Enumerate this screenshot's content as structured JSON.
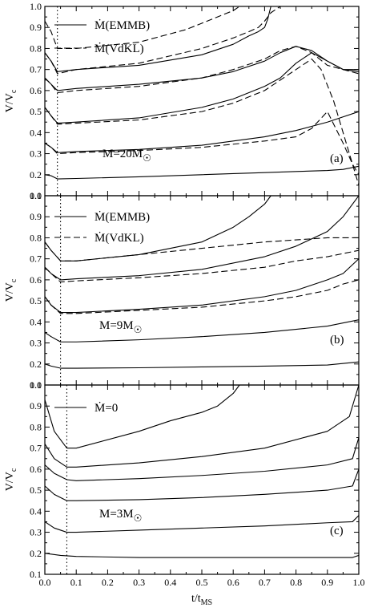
{
  "figure": {
    "x_axis_label": "t/t",
    "x_axis_label_sub": "MS",
    "x_ticks": [
      "0.0",
      "0.1",
      "0.2",
      "0.3",
      "0.4",
      "0.5",
      "0.6",
      "0.7",
      "0.8",
      "0.9",
      "1.0"
    ]
  },
  "chart_data": [
    {
      "type": "line",
      "panel_label": "(a)",
      "mass_label": "M=20M",
      "mass_symbol": "☉",
      "ylabel": "V/V",
      "ylabel_sub": "c",
      "xlim": [
        0.0,
        1.0
      ],
      "ylim": [
        0.1,
        1.0
      ],
      "y_ticks": [
        "0.1",
        "0.2",
        "0.3",
        "0.4",
        "0.5",
        "0.6",
        "0.7",
        "0.8",
        "0.9",
        "1.0"
      ],
      "grid": false,
      "legend": [
        {
          "label": "Ṁ(EMMB)",
          "dash": "solid"
        },
        {
          "label": "Ṁ(VdKL)",
          "dash": "dashed"
        }
      ],
      "legend_position": "top-left",
      "vline_x": 0.04,
      "series": [
        {
          "dash": "solid",
          "x": [
            0,
            0.02,
            0.04,
            0.1,
            0.3,
            0.5,
            0.6,
            0.7,
            0.8,
            0.9,
            0.95,
            1.0
          ],
          "y": [
            0.2,
            0.195,
            0.18,
            0.182,
            0.19,
            0.2,
            0.205,
            0.21,
            0.215,
            0.22,
            0.225,
            0.24
          ]
        },
        {
          "dash": "solid",
          "x": [
            0,
            0.02,
            0.04,
            0.1,
            0.3,
            0.5,
            0.6,
            0.7,
            0.8,
            0.9,
            1.0
          ],
          "y": [
            0.35,
            0.33,
            0.305,
            0.31,
            0.32,
            0.34,
            0.36,
            0.38,
            0.41,
            0.45,
            0.5
          ]
        },
        {
          "dash": "solid",
          "x": [
            0,
            0.02,
            0.04,
            0.1,
            0.3,
            0.5,
            0.6,
            0.7,
            0.75,
            0.8,
            0.85,
            0.9,
            0.95,
            1.0
          ],
          "y": [
            0.52,
            0.48,
            0.445,
            0.45,
            0.47,
            0.52,
            0.56,
            0.62,
            0.66,
            0.73,
            0.78,
            0.74,
            0.7,
            0.7
          ]
        },
        {
          "dash": "solid",
          "x": [
            0,
            0.02,
            0.04,
            0.1,
            0.3,
            0.5,
            0.6,
            0.7,
            0.75,
            0.8,
            0.85,
            0.9,
            0.95,
            1.0
          ],
          "y": [
            0.66,
            0.63,
            0.6,
            0.61,
            0.63,
            0.66,
            0.69,
            0.74,
            0.78,
            0.81,
            0.79,
            0.74,
            0.7,
            0.69
          ]
        },
        {
          "dash": "solid",
          "x": [
            0,
            0.02,
            0.04,
            0.1,
            0.3,
            0.5,
            0.6,
            0.65,
            0.68,
            0.7,
            0.71,
            0.72
          ],
          "y": [
            0.78,
            0.74,
            0.69,
            0.7,
            0.72,
            0.77,
            0.82,
            0.86,
            0.88,
            0.9,
            0.94,
            1.0
          ]
        },
        {
          "dash": "dashed",
          "x": [
            0,
            0.02,
            0.04,
            0.1,
            0.3,
            0.5,
            0.6,
            0.7,
            0.8,
            0.85,
            0.9,
            0.95,
            0.98,
            1.0
          ],
          "y": [
            0.35,
            0.33,
            0.3,
            0.305,
            0.315,
            0.33,
            0.345,
            0.36,
            0.38,
            0.42,
            0.5,
            0.35,
            0.25,
            0.2
          ]
        },
        {
          "dash": "dashed",
          "x": [
            0,
            0.02,
            0.04,
            0.1,
            0.3,
            0.5,
            0.6,
            0.7,
            0.8,
            0.85,
            0.88,
            0.92,
            0.96,
            1.0
          ],
          "y": [
            0.52,
            0.48,
            0.44,
            0.445,
            0.46,
            0.5,
            0.54,
            0.6,
            0.7,
            0.75,
            0.7,
            0.55,
            0.35,
            0.15
          ]
        },
        {
          "dash": "dashed",
          "x": [
            0,
            0.02,
            0.04,
            0.1,
            0.3,
            0.5,
            0.6,
            0.7,
            0.75,
            0.8,
            0.85,
            0.9,
            0.95,
            1.0
          ],
          "y": [
            0.66,
            0.63,
            0.59,
            0.6,
            0.62,
            0.66,
            0.7,
            0.75,
            0.79,
            0.81,
            0.78,
            0.72,
            0.7,
            0.68
          ]
        },
        {
          "dash": "dashed",
          "x": [
            0,
            0.02,
            0.04,
            0.1,
            0.3,
            0.5,
            0.6,
            0.65,
            0.68,
            0.7,
            0.72,
            0.75
          ],
          "y": [
            0.78,
            0.74,
            0.68,
            0.7,
            0.73,
            0.8,
            0.85,
            0.88,
            0.9,
            0.93,
            0.97,
            1.0
          ]
        },
        {
          "dash": "dashed",
          "x": [
            0,
            0.02,
            0.04,
            0.1,
            0.3,
            0.45,
            0.5,
            0.55,
            0.6,
            0.62
          ],
          "y": [
            0.93,
            0.88,
            0.8,
            0.8,
            0.83,
            0.89,
            0.92,
            0.95,
            0.98,
            1.0
          ]
        }
      ]
    },
    {
      "type": "line",
      "panel_label": "(b)",
      "mass_label": "M=9M",
      "mass_symbol": "☉",
      "ylabel": "V/V",
      "ylabel_sub": "c",
      "xlim": [
        0.0,
        1.0
      ],
      "ylim": [
        0.1,
        1.0
      ],
      "y_ticks": [
        "0.1",
        "0.2",
        "0.3",
        "0.4",
        "0.5",
        "0.6",
        "0.7",
        "0.8",
        "0.9",
        "1.0"
      ],
      "grid": false,
      "legend": [
        {
          "label": "Ṁ(EMMB)",
          "dash": "solid"
        },
        {
          "label": "Ṁ(VdKL)",
          "dash": "dashed"
        }
      ],
      "legend_position": "top-left",
      "vline_x": 0.05,
      "series": [
        {
          "dash": "solid",
          "x": [
            0,
            0.02,
            0.05,
            0.1,
            0.3,
            0.5,
            0.7,
            0.9,
            1.0
          ],
          "y": [
            0.2,
            0.19,
            0.18,
            0.18,
            0.182,
            0.186,
            0.19,
            0.195,
            0.21
          ]
        },
        {
          "dash": "solid",
          "x": [
            0,
            0.02,
            0.05,
            0.1,
            0.3,
            0.5,
            0.7,
            0.9,
            1.0
          ],
          "y": [
            0.35,
            0.33,
            0.305,
            0.305,
            0.315,
            0.33,
            0.35,
            0.38,
            0.41
          ]
        },
        {
          "dash": "solid",
          "x": [
            0,
            0.02,
            0.05,
            0.1,
            0.3,
            0.5,
            0.7,
            0.8,
            0.9,
            0.95,
            1.0
          ],
          "y": [
            0.52,
            0.48,
            0.445,
            0.445,
            0.46,
            0.48,
            0.52,
            0.55,
            0.6,
            0.63,
            0.7
          ]
        },
        {
          "dash": "solid",
          "x": [
            0,
            0.02,
            0.05,
            0.1,
            0.3,
            0.5,
            0.7,
            0.8,
            0.9,
            0.95,
            1.0
          ],
          "y": [
            0.66,
            0.63,
            0.6,
            0.605,
            0.62,
            0.65,
            0.71,
            0.76,
            0.83,
            0.9,
            1.0
          ]
        },
        {
          "dash": "solid",
          "x": [
            0,
            0.02,
            0.05,
            0.1,
            0.3,
            0.5,
            0.6,
            0.65,
            0.7,
            0.72
          ],
          "y": [
            0.78,
            0.74,
            0.69,
            0.69,
            0.72,
            0.78,
            0.85,
            0.9,
            0.96,
            1.0
          ]
        },
        {
          "dash": "dashed",
          "x": [
            0,
            0.02,
            0.05,
            0.1,
            0.3,
            0.5,
            0.7,
            0.8,
            0.9,
            0.95,
            1.0
          ],
          "y": [
            0.52,
            0.48,
            0.44,
            0.44,
            0.455,
            0.47,
            0.5,
            0.52,
            0.55,
            0.58,
            0.6
          ]
        },
        {
          "dash": "dashed",
          "x": [
            0,
            0.02,
            0.05,
            0.1,
            0.3,
            0.5,
            0.7,
            0.8,
            0.9,
            1.0
          ],
          "y": [
            0.66,
            0.63,
            0.59,
            0.595,
            0.61,
            0.63,
            0.66,
            0.69,
            0.71,
            0.74
          ]
        },
        {
          "dash": "dashed",
          "x": [
            0,
            0.02,
            0.05,
            0.1,
            0.3,
            0.5,
            0.7,
            0.8,
            0.9,
            1.0
          ],
          "y": [
            0.78,
            0.74,
            0.69,
            0.69,
            0.72,
            0.75,
            0.78,
            0.79,
            0.8,
            0.8
          ]
        }
      ]
    },
    {
      "type": "line",
      "panel_label": "(c)",
      "mass_label": "M=3M",
      "mass_symbol": "☉",
      "ylabel": "V/V",
      "ylabel_sub": "c",
      "xlim": [
        0.0,
        1.0
      ],
      "ylim": [
        0.1,
        1.0
      ],
      "y_ticks": [
        "0.1",
        "0.2",
        "0.3",
        "0.4",
        "0.5",
        "0.6",
        "0.7",
        "0.8",
        "0.9",
        "1.0"
      ],
      "grid": false,
      "legend": [
        {
          "label": "Ṁ=0",
          "dash": "solid"
        }
      ],
      "legend_position": "top-left",
      "vline_x": 0.07,
      "series": [
        {
          "dash": "solid",
          "x": [
            0,
            0.05,
            0.1,
            0.3,
            0.5,
            0.7,
            0.9,
            0.95,
            0.98,
            1.0
          ],
          "y": [
            0.2,
            0.19,
            0.185,
            0.18,
            0.18,
            0.18,
            0.18,
            0.18,
            0.18,
            0.19
          ]
        },
        {
          "dash": "solid",
          "x": [
            0,
            0.03,
            0.07,
            0.1,
            0.3,
            0.5,
            0.7,
            0.9,
            0.98,
            1.0
          ],
          "y": [
            0.35,
            0.32,
            0.3,
            0.3,
            0.31,
            0.32,
            0.33,
            0.345,
            0.35,
            0.38
          ]
        },
        {
          "dash": "solid",
          "x": [
            0,
            0.03,
            0.07,
            0.1,
            0.3,
            0.5,
            0.7,
            0.9,
            0.98,
            1.0
          ],
          "y": [
            0.52,
            0.48,
            0.45,
            0.45,
            0.455,
            0.465,
            0.48,
            0.5,
            0.52,
            0.6
          ]
        },
        {
          "dash": "solid",
          "x": [
            0,
            0.03,
            0.07,
            0.1,
            0.3,
            0.5,
            0.7,
            0.9,
            0.98,
            1.0
          ],
          "y": [
            0.62,
            0.58,
            0.55,
            0.545,
            0.555,
            0.57,
            0.59,
            0.62,
            0.65,
            0.75
          ]
        },
        {
          "dash": "solid",
          "x": [
            0,
            0.03,
            0.07,
            0.1,
            0.3,
            0.5,
            0.7,
            0.9,
            0.97,
            0.99,
            1.0
          ],
          "y": [
            0.72,
            0.65,
            0.61,
            0.61,
            0.63,
            0.66,
            0.7,
            0.78,
            0.85,
            0.95,
            1.0
          ]
        },
        {
          "dash": "solid",
          "x": [
            0,
            0.03,
            0.07,
            0.1,
            0.3,
            0.4,
            0.5,
            0.55,
            0.6,
            0.62
          ],
          "y": [
            0.93,
            0.78,
            0.7,
            0.7,
            0.78,
            0.83,
            0.87,
            0.9,
            0.96,
            1.0
          ]
        }
      ]
    }
  ]
}
